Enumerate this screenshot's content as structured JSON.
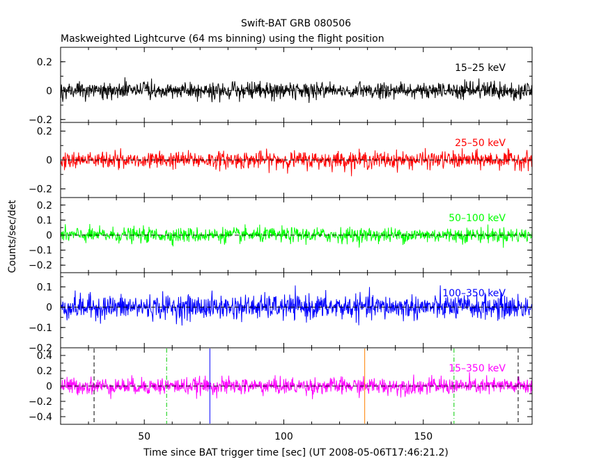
{
  "title": "Swift-BAT GRB 080506",
  "subtitle": "Maskweighted Lightcurve (64 ms binning) using the flight position",
  "xlabel": "Time since BAT trigger time [sec] (UT 2008-05-06T17:46:21.2)",
  "ylabel": "Counts/sec/det",
  "chart_data": {
    "type": "line",
    "title": "Swift-BAT GRB 080506",
    "subtitle": "Maskweighted Lightcurve (64 ms binning) using the flight position",
    "xlabel": "Time since BAT trigger time [sec] (UT 2008-05-06T17:46:21.2)",
    "ylabel": "Counts/sec/det",
    "xlim": [
      20,
      189
    ],
    "xticks": [
      50,
      100,
      150
    ],
    "bin_seconds": 0.064,
    "panels": [
      {
        "band": "15–25 keV",
        "color": "#000000",
        "ylim": [
          -0.22,
          0.3
        ],
        "yticks": [
          -0.2,
          0,
          0.2
        ],
        "mean": 0.0,
        "noise_sigma": 0.03
      },
      {
        "band": "25–50 keV",
        "color": "#ff0000",
        "ylim": [
          -0.26,
          0.26
        ],
        "yticks": [
          -0.2,
          0,
          0.2
        ],
        "mean": 0.0,
        "noise_sigma": 0.03
      },
      {
        "band": "50–100 keV",
        "color": "#00ff00",
        "ylim": [
          -0.25,
          0.25
        ],
        "yticks": [
          -0.2,
          -0.1,
          0,
          0.1,
          0.2
        ],
        "mean": 0.0,
        "noise_sigma": 0.025
      },
      {
        "band": "100–350 keV",
        "color": "#0000ff",
        "ylim": [
          -0.2,
          0.17
        ],
        "yticks": [
          -0.2,
          -0.1,
          0,
          0.1
        ],
        "mean": 0.0,
        "noise_sigma": 0.03
      },
      {
        "band": "15–350 keV",
        "color": "#ff00ff",
        "ylim": [
          -0.5,
          0.5
        ],
        "yticks": [
          -0.4,
          -0.2,
          0,
          0.2,
          0.4
        ],
        "mean": 0.0,
        "noise_sigma": 0.055
      }
    ],
    "markers": [
      {
        "x": 32,
        "color": "#000000",
        "style": "dashed"
      },
      {
        "x": 58,
        "color": "#00cc00",
        "style": "dashdot"
      },
      {
        "x": 73.5,
        "color": "#0000ff",
        "style": "solid"
      },
      {
        "x": 129,
        "color": "#ff8000",
        "style": "solid"
      },
      {
        "x": 161,
        "color": "#00cc00",
        "style": "dashdot"
      },
      {
        "x": 184,
        "color": "#000000",
        "style": "dashed"
      }
    ]
  }
}
